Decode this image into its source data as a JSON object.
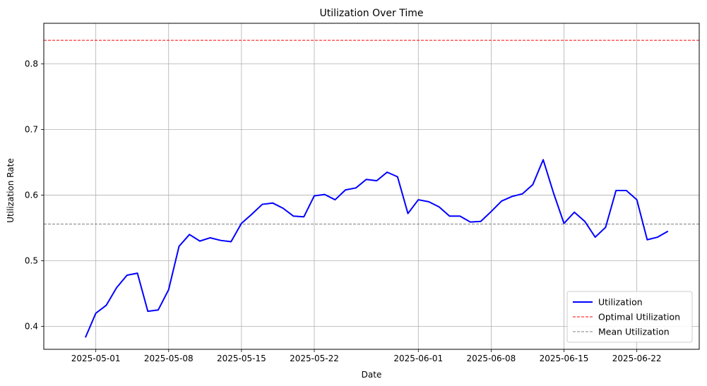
{
  "chart_data": {
    "type": "line",
    "title": "Utilization Over Time",
    "xlabel": "Date",
    "ylabel": "Utilization Rate",
    "xlim": [
      "2025-04-26",
      "2025-06-28"
    ],
    "ylim": [
      0.365,
      0.862
    ],
    "x_ticks": [
      "2025-05-01",
      "2025-05-08",
      "2025-05-15",
      "2025-05-22",
      "2025-06-01",
      "2025-06-08",
      "2025-06-15",
      "2025-06-22"
    ],
    "y_ticks": [
      0.4,
      0.5,
      0.6,
      0.7,
      0.8
    ],
    "grid": true,
    "legend_position": "lower-right",
    "series": [
      {
        "name": "Utilization",
        "color": "#0000ff",
        "style": "solid",
        "x": [
          "2025-04-30",
          "2025-05-01",
          "2025-05-02",
          "2025-05-03",
          "2025-05-04",
          "2025-05-05",
          "2025-05-06",
          "2025-05-07",
          "2025-05-08",
          "2025-05-09",
          "2025-05-10",
          "2025-05-11",
          "2025-05-12",
          "2025-05-13",
          "2025-05-14",
          "2025-05-15",
          "2025-05-16",
          "2025-05-17",
          "2025-05-18",
          "2025-05-19",
          "2025-05-20",
          "2025-05-21",
          "2025-05-22",
          "2025-05-23",
          "2025-05-24",
          "2025-05-25",
          "2025-05-26",
          "2025-05-27",
          "2025-05-28",
          "2025-05-29",
          "2025-05-30",
          "2025-05-31",
          "2025-06-01",
          "2025-06-02",
          "2025-06-03",
          "2025-06-04",
          "2025-06-05",
          "2025-06-06",
          "2025-06-07",
          "2025-06-08",
          "2025-06-09",
          "2025-06-10",
          "2025-06-11",
          "2025-06-12",
          "2025-06-13",
          "2025-06-14",
          "2025-06-15",
          "2025-06-16",
          "2025-06-17",
          "2025-06-18",
          "2025-06-19",
          "2025-06-20",
          "2025-06-21",
          "2025-06-22",
          "2025-06-23",
          "2025-06-24",
          "2025-06-25"
        ],
        "y": [
          0.383,
          0.42,
          0.432,
          0.459,
          0.478,
          0.481,
          0.423,
          0.425,
          0.456,
          0.522,
          0.54,
          0.53,
          0.535,
          0.531,
          0.529,
          0.557,
          0.571,
          0.586,
          0.588,
          0.58,
          0.568,
          0.567,
          0.599,
          0.601,
          0.593,
          0.608,
          0.611,
          0.624,
          0.622,
          0.635,
          0.628,
          0.572,
          0.593,
          0.59,
          0.582,
          0.568,
          0.568,
          0.559,
          0.56,
          0.575,
          0.591,
          0.598,
          0.602,
          0.616,
          0.654,
          0.603,
          0.557,
          0.574,
          0.56,
          0.536,
          0.551,
          0.607,
          0.607,
          0.593,
          0.532,
          0.536,
          0.545
        ]
      },
      {
        "name": "Optimal Utilization",
        "color": "#ff0000",
        "style": "dashed",
        "value": 0.836
      },
      {
        "name": "Mean Utilization",
        "color": "#808080",
        "style": "dashed",
        "value": 0.556
      }
    ]
  }
}
